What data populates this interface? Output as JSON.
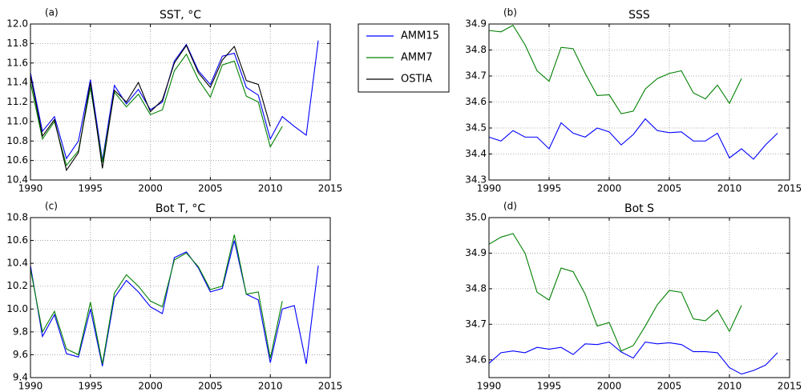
{
  "chart_data": [
    {
      "type": "line",
      "label": "(a)",
      "title": "SST, °C",
      "x": [
        1990,
        1991,
        1992,
        1993,
        1994,
        1995,
        1996,
        1997,
        1998,
        1999,
        2000,
        2001,
        2002,
        2003,
        2004,
        2005,
        2006,
        2007,
        2008,
        2009,
        2010,
        2011,
        2012,
        2013,
        2014
      ],
      "series": [
        {
          "name": "AMM15",
          "color": "#0000ff",
          "values": [
            11.5,
            10.9,
            11.05,
            10.62,
            10.8,
            11.43,
            10.6,
            11.37,
            11.18,
            11.33,
            11.12,
            11.2,
            11.62,
            11.79,
            11.52,
            11.38,
            11.67,
            11.7,
            11.35,
            11.27,
            10.82,
            11.05,
            10.95,
            10.86,
            11.83
          ]
        },
        {
          "name": "AMM7",
          "color": "#008000",
          "values": [
            11.4,
            10.82,
            11.0,
            10.55,
            10.7,
            11.35,
            10.58,
            11.3,
            11.15,
            11.28,
            11.07,
            11.12,
            11.52,
            11.69,
            11.43,
            11.25,
            11.58,
            11.62,
            11.26,
            11.2,
            10.74,
            10.95,
            null,
            null,
            null
          ]
        },
        {
          "name": "OSTIA",
          "color": "#000000",
          "values": [
            11.47,
            10.85,
            11.02,
            10.5,
            10.68,
            11.4,
            10.52,
            11.32,
            11.2,
            11.4,
            11.1,
            11.22,
            11.6,
            11.78,
            11.5,
            11.35,
            11.63,
            11.77,
            11.42,
            11.38,
            10.95,
            null,
            null,
            null,
            null
          ]
        }
      ],
      "xlim": [
        1990,
        2015
      ],
      "xticks": [
        1990,
        1995,
        2000,
        2005,
        2010,
        2015
      ],
      "ylim": [
        10.4,
        12.0
      ],
      "yticks": [
        10.4,
        10.6,
        10.8,
        {
          "value": 11,
          "label": "11.0"
        },
        11.2,
        11.4,
        11.6,
        11.8,
        {
          "value": 12,
          "label": "12.0"
        }
      ],
      "grid": true,
      "legend": "outside-right"
    },
    {
      "type": "line",
      "label": "(b)",
      "title": "SSS",
      "x": [
        1990,
        1991,
        1992,
        1993,
        1994,
        1995,
        1996,
        1997,
        1998,
        1999,
        2000,
        2001,
        2002,
        2003,
        2004,
        2005,
        2006,
        2007,
        2008,
        2009,
        2010,
        2011,
        2012,
        2013,
        2014
      ],
      "series": [
        {
          "name": "AMM15",
          "color": "#0000ff",
          "values": [
            34.465,
            34.45,
            34.49,
            34.465,
            34.465,
            34.42,
            34.52,
            34.48,
            34.465,
            34.5,
            34.485,
            34.435,
            34.475,
            34.535,
            34.49,
            34.482,
            34.485,
            34.45,
            34.45,
            34.48,
            34.385,
            34.42,
            34.38,
            34.435,
            34.48
          ]
        },
        {
          "name": "AMM7",
          "color": "#008000",
          "values": [
            34.875,
            34.87,
            34.895,
            34.82,
            34.72,
            34.68,
            34.81,
            34.805,
            34.71,
            34.625,
            34.628,
            34.555,
            34.565,
            34.65,
            34.69,
            34.71,
            34.72,
            34.635,
            34.612,
            34.665,
            34.595,
            34.69,
            null,
            null,
            null
          ]
        }
      ],
      "xlim": [
        1990,
        2015
      ],
      "xticks": [
        1990,
        1995,
        2000,
        2005,
        2010,
        2015
      ],
      "ylim": [
        34.3,
        34.9
      ],
      "yticks": [
        34.3,
        34.4,
        34.5,
        34.6,
        34.7,
        34.8,
        34.9
      ],
      "grid": true
    },
    {
      "type": "line",
      "label": "(c)",
      "title": "Bot T, °C",
      "x": [
        1990,
        1991,
        1992,
        1993,
        1994,
        1995,
        1996,
        1997,
        1998,
        1999,
        2000,
        2001,
        2002,
        2003,
        2004,
        2005,
        2006,
        2007,
        2008,
        2009,
        2010,
        2011,
        2012,
        2013,
        2014
      ],
      "series": [
        {
          "name": "AMM15",
          "color": "#0000ff",
          "values": [
            10.38,
            9.76,
            9.95,
            9.61,
            9.58,
            10.0,
            9.5,
            10.1,
            10.25,
            10.15,
            10.02,
            9.96,
            10.45,
            10.5,
            10.36,
            10.15,
            10.18,
            10.6,
            10.13,
            10.08,
            9.53,
            10.0,
            10.03,
            9.52,
            10.38
          ]
        },
        {
          "name": "AMM7",
          "color": "#008000",
          "values": [
            10.35,
            9.8,
            9.98,
            9.65,
            9.6,
            10.06,
            9.52,
            10.14,
            10.3,
            10.2,
            10.07,
            10.02,
            10.43,
            10.49,
            10.37,
            10.17,
            10.2,
            10.65,
            10.13,
            10.15,
            9.57,
            10.07,
            null,
            null,
            null
          ]
        }
      ],
      "xlim": [
        1990,
        2015
      ],
      "xticks": [
        1990,
        1995,
        2000,
        2005,
        2010,
        2015
      ],
      "ylim": [
        9.4,
        10.8
      ],
      "yticks": [
        9.4,
        9.6,
        9.8,
        {
          "value": 10,
          "label": "10.0"
        },
        10.2,
        10.4,
        10.6,
        10.8
      ],
      "grid": true
    },
    {
      "type": "line",
      "label": "(d)",
      "title": "Bot S",
      "x": [
        1990,
        1991,
        1992,
        1993,
        1994,
        1995,
        1996,
        1997,
        1998,
        1999,
        2000,
        2001,
        2002,
        2003,
        2004,
        2005,
        2006,
        2007,
        2008,
        2009,
        2010,
        2011,
        2012,
        2013,
        2014
      ],
      "series": [
        {
          "name": "AMM15",
          "color": "#0000ff",
          "values": [
            34.59,
            34.62,
            34.625,
            34.62,
            34.635,
            34.63,
            34.635,
            34.615,
            34.645,
            34.643,
            34.65,
            34.622,
            34.605,
            34.65,
            34.645,
            34.648,
            34.643,
            34.623,
            34.623,
            34.62,
            34.578,
            34.56,
            34.57,
            34.585,
            34.62
          ]
        },
        {
          "name": "AMM7",
          "color": "#008000",
          "values": [
            34.925,
            34.945,
            34.955,
            34.9,
            34.79,
            34.768,
            34.858,
            34.848,
            34.785,
            34.695,
            34.705,
            34.625,
            34.64,
            34.695,
            34.755,
            34.795,
            34.79,
            34.715,
            34.71,
            34.74,
            34.68,
            34.753,
            null,
            null,
            null
          ]
        }
      ],
      "xlim": [
        1990,
        2015
      ],
      "xticks": [
        1990,
        1995,
        2000,
        2005,
        2010,
        2015
      ],
      "ylim": [
        34.55,
        35.0
      ],
      "yticks": [
        34.6,
        34.7,
        34.8,
        34.9,
        {
          "value": 35,
          "label": "35.0"
        }
      ],
      "grid": true
    }
  ]
}
